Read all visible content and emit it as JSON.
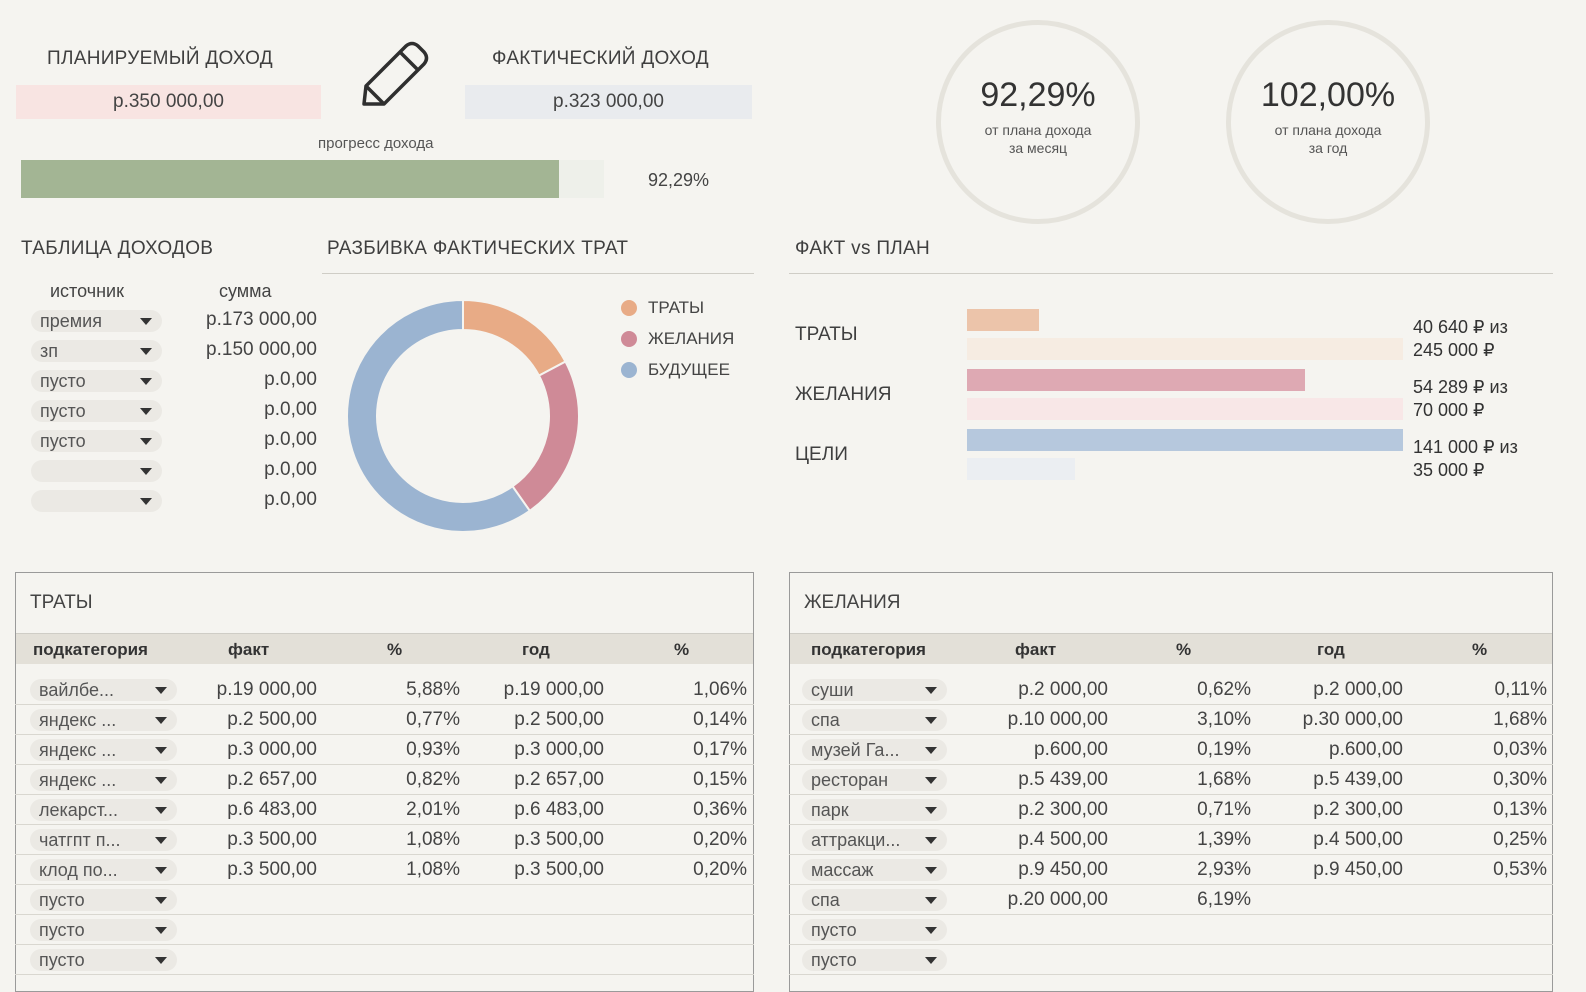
{
  "income": {
    "planned_title": "ПЛАНИРУЕМЫЙ ДОХОД",
    "planned_value": "р.350 000,00",
    "actual_title": "ФАКТИЧЕСКИЙ ДОХОД",
    "actual_value": "р.323 000,00",
    "progress_label": "прогресс дохода",
    "progress_text": "92,29%",
    "progress_fraction": 0.9229,
    "month_pct": "92,29%",
    "month_caption_1": "от плана дохода",
    "month_caption_2": "за месяц",
    "year_pct": "102,00%",
    "year_caption_1": "от плана дохода",
    "year_caption_2": "за год"
  },
  "income_table": {
    "title": "ТАБЛИЦА ДОХОДОВ",
    "col_source": "источник",
    "col_sum": "сумма",
    "rows": [
      {
        "source": "премия",
        "sum": "р.173 000,00"
      },
      {
        "source": "зп",
        "sum": "р.150 000,00"
      },
      {
        "source": "пусто",
        "sum": "р.0,00"
      },
      {
        "source": "пусто",
        "sum": "р.0,00"
      },
      {
        "source": "пусто",
        "sum": "р.0,00"
      },
      {
        "source": "",
        "sum": "р.0,00"
      },
      {
        "source": "",
        "sum": "р.0,00"
      }
    ]
  },
  "breakdown": {
    "title": "РАЗБИВКА ФАКТИЧЕСКИХ ТРАТ",
    "legend": [
      {
        "label": "ТРАТЫ",
        "color": "#e8ab86"
      },
      {
        "label": "ЖЕЛАНИЯ",
        "color": "#cf8a97"
      },
      {
        "label": "БУДУЩЕЕ",
        "color": "#9bb4d1"
      }
    ]
  },
  "chart_data": {
    "type": "pie",
    "categories": [
      "ТРАТЫ",
      "ЖЕЛАНИЯ",
      "БУДУЩЕЕ"
    ],
    "values": [
      40640,
      54289,
      141000
    ],
    "colors": [
      "#e8ab86",
      "#cf8a97",
      "#9bb4d1"
    ],
    "donut": true,
    "legend": "right"
  },
  "fact_vs_plan": {
    "title": "ФАКТ vs ПЛАН",
    "rows": [
      {
        "label": "ТРАТЫ",
        "fact": 40640,
        "plan": 245000,
        "fact_color": "#ecc4aa",
        "plan_color": "#f6ece2",
        "text1": "40 640 ₽ из",
        "text2": "245 000 ₽"
      },
      {
        "label": "ЖЕЛАНИЯ",
        "fact": 54289,
        "plan": 70000,
        "fact_color": "#dea9b3",
        "plan_color": "#f8e7e7",
        "text1": "54 289 ₽ из",
        "text2": "70 000 ₽"
      },
      {
        "label": "ЦЕЛИ",
        "fact": 141000,
        "plan": 35000,
        "fact_color": "#b6c8dd",
        "plan_color": "#ebeef2",
        "text1": "141 000 ₽ из",
        "text2": "35 000 ₽"
      }
    ]
  },
  "spending": {
    "title": "ТРАТЫ",
    "cols": [
      "подкатегория",
      "факт",
      "%",
      "год",
      "%"
    ],
    "rows": [
      {
        "cat": "вайлбе...",
        "fact": "р.19 000,00",
        "pct": "5,88%",
        "year": "р.19 000,00",
        "ypct": "1,06%"
      },
      {
        "cat": "яндекс ...",
        "fact": "р.2 500,00",
        "pct": "0,77%",
        "year": "р.2 500,00",
        "ypct": "0,14%"
      },
      {
        "cat": "яндекс ...",
        "fact": "р.3 000,00",
        "pct": "0,93%",
        "year": "р.3 000,00",
        "ypct": "0,17%"
      },
      {
        "cat": "яндекс ...",
        "fact": "р.2 657,00",
        "pct": "0,82%",
        "year": "р.2 657,00",
        "ypct": "0,15%"
      },
      {
        "cat": "лекарст...",
        "fact": "р.6 483,00",
        "pct": "2,01%",
        "year": "р.6 483,00",
        "ypct": "0,36%"
      },
      {
        "cat": "чатгпт п...",
        "fact": "р.3 500,00",
        "pct": "1,08%",
        "year": "р.3 500,00",
        "ypct": "0,20%"
      },
      {
        "cat": "клод по...",
        "fact": "р.3 500,00",
        "pct": "1,08%",
        "year": "р.3 500,00",
        "ypct": "0,20%"
      },
      {
        "cat": "пусто",
        "fact": "",
        "pct": "",
        "year": "",
        "ypct": ""
      },
      {
        "cat": "пусто",
        "fact": "",
        "pct": "",
        "year": "",
        "ypct": ""
      },
      {
        "cat": "пусто",
        "fact": "",
        "pct": "",
        "year": "",
        "ypct": ""
      }
    ]
  },
  "wishes": {
    "title": "ЖЕЛАНИЯ",
    "cols": [
      "подкатегория",
      "факт",
      "%",
      "год",
      "%"
    ],
    "rows": [
      {
        "cat": "суши",
        "fact": "р.2 000,00",
        "pct": "0,62%",
        "year": "р.2 000,00",
        "ypct": "0,11%"
      },
      {
        "cat": "спа",
        "fact": "р.10 000,00",
        "pct": "3,10%",
        "year": "р.30 000,00",
        "ypct": "1,68%"
      },
      {
        "cat": "музей Га...",
        "fact": "р.600,00",
        "pct": "0,19%",
        "year": "р.600,00",
        "ypct": "0,03%"
      },
      {
        "cat": "ресторан",
        "fact": "р.5 439,00",
        "pct": "1,68%",
        "year": "р.5 439,00",
        "ypct": "0,30%"
      },
      {
        "cat": "парк",
        "fact": "р.2 300,00",
        "pct": "0,71%",
        "year": "р.2 300,00",
        "ypct": "0,13%"
      },
      {
        "cat": "аттракци...",
        "fact": "р.4 500,00",
        "pct": "1,39%",
        "year": "р.4 500,00",
        "ypct": "0,25%"
      },
      {
        "cat": "массаж",
        "fact": "р.9 450,00",
        "pct": "2,93%",
        "year": "р.9 450,00",
        "ypct": "0,53%"
      },
      {
        "cat": "спа",
        "fact": "р.20 000,00",
        "pct": "6,19%",
        "year": "",
        "ypct": ""
      },
      {
        "cat": "пусто",
        "fact": "",
        "pct": "",
        "year": "",
        "ypct": ""
      },
      {
        "cat": "пусто",
        "fact": "",
        "pct": "",
        "year": "",
        "ypct": ""
      }
    ]
  }
}
